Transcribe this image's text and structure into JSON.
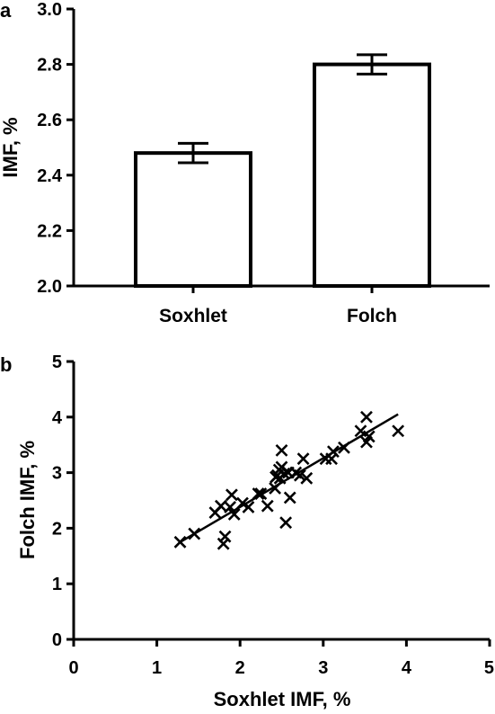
{
  "chart_data": [
    {
      "panel": "a",
      "type": "bar",
      "categories": [
        "Soxhlet",
        "Folch"
      ],
      "values": [
        2.48,
        2.8
      ],
      "error": [
        0.035,
        0.035
      ],
      "ylabel": "IMF, %",
      "xlabel": "",
      "ylim": [
        2.0,
        3.0
      ],
      "yticks": [
        "2.0",
        "2.2",
        "2.4",
        "2.6",
        "2.8",
        "3.0"
      ],
      "grid": false
    },
    {
      "panel": "b",
      "type": "scatter",
      "xlabel": "Soxhlet IMF, %",
      "ylabel": "Folch IMF, %",
      "xlim": [
        0,
        5
      ],
      "ylim": [
        0,
        5
      ],
      "xticks": [
        "0",
        "1",
        "2",
        "3",
        "4",
        "5"
      ],
      "yticks": [
        "0",
        "1",
        "2",
        "3",
        "4",
        "5"
      ],
      "grid": false,
      "points": [
        [
          1.28,
          1.75
        ],
        [
          1.45,
          1.9
        ],
        [
          1.7,
          2.28
        ],
        [
          1.77,
          2.4
        ],
        [
          1.8,
          1.72
        ],
        [
          1.82,
          1.85
        ],
        [
          1.88,
          2.38
        ],
        [
          1.93,
          2.25
        ],
        [
          1.9,
          2.6
        ],
        [
          2.03,
          2.45
        ],
        [
          2.1,
          2.38
        ],
        [
          2.22,
          2.62
        ],
        [
          2.25,
          2.62
        ],
        [
          2.33,
          2.4
        ],
        [
          2.42,
          2.72
        ],
        [
          2.43,
          2.92
        ],
        [
          2.45,
          2.95
        ],
        [
          2.47,
          3.05
        ],
        [
          2.48,
          2.9
        ],
        [
          2.5,
          3.4
        ],
        [
          2.5,
          3.1
        ],
        [
          2.53,
          2.98
        ],
        [
          2.55,
          2.1
        ],
        [
          2.58,
          3.0
        ],
        [
          2.6,
          2.55
        ],
        [
          2.67,
          3.0
        ],
        [
          2.72,
          2.95
        ],
        [
          2.76,
          3.25
        ],
        [
          2.8,
          2.9
        ],
        [
          3.03,
          3.25
        ],
        [
          3.1,
          3.25
        ],
        [
          3.12,
          3.38
        ],
        [
          3.25,
          3.45
        ],
        [
          3.45,
          3.75
        ],
        [
          3.52,
          3.55
        ],
        [
          3.52,
          4.0
        ],
        [
          3.55,
          3.65
        ],
        [
          3.9,
          3.75
        ]
      ],
      "trendline": [
        [
          1.28,
          1.75
        ],
        [
          3.9,
          4.05
        ]
      ]
    }
  ]
}
